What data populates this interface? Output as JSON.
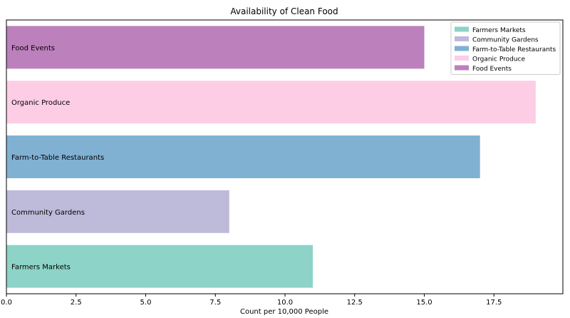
{
  "chart_data": {
    "type": "bar",
    "orientation": "horizontal",
    "title": "Availability of Clean Food",
    "xlabel": "Count per 10,000 People",
    "ylabel": "",
    "xlim": [
      0,
      20
    ],
    "x_ticks": [
      "0.0",
      "2.5",
      "5.0",
      "7.5",
      "10.0",
      "12.5",
      "15.0",
      "17.5"
    ],
    "categories": [
      "Farmers Markets",
      "Community Gardens",
      "Farm-to-Table Restaurants",
      "Organic Produce",
      "Food Events"
    ],
    "values": [
      11,
      8,
      17,
      19,
      15
    ],
    "colors": [
      "#8dd3c7",
      "#bebada",
      "#80b1d3",
      "#fccde5",
      "#bc80bd"
    ],
    "grid": false,
    "legend": {
      "placement": "top-right",
      "entries": [
        "Farmers Markets",
        "Community Gardens",
        "Farm-to-Table Restaurants",
        "Organic Produce",
        "Food Events"
      ]
    }
  }
}
